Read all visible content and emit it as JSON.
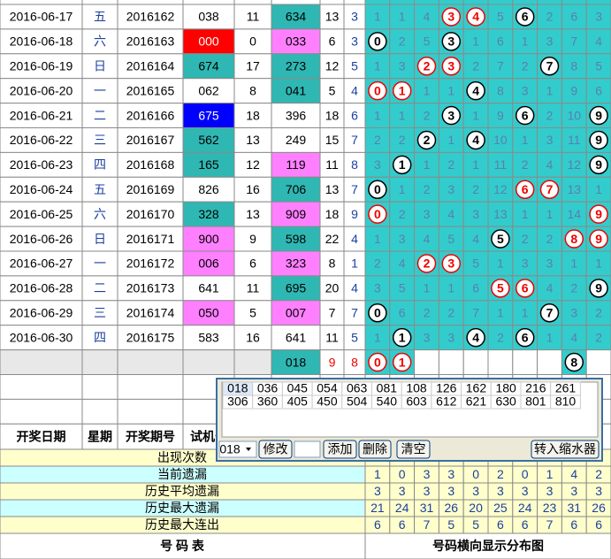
{
  "table": {
    "rows": [
      {
        "date": "2016-06-17",
        "weekday": "五",
        "issue": "2016162",
        "number": "038",
        "sum": 11,
        "number2": "634",
        "n2sum": 13,
        "span": 3,
        "dist": [
          1,
          1,
          4,
          3,
          4,
          5,
          6,
          2,
          6,
          3
        ],
        "hits": [
          3,
          4,
          6
        ],
        "red_hits": [
          3,
          4
        ],
        "number2_bg": "#2fb7b3"
      },
      {
        "date": "2016-06-18",
        "weekday": "六",
        "issue": "2016163",
        "number": "000",
        "sum": 0,
        "number2": "033",
        "n2sum": 6,
        "span": 3,
        "dist": [
          0,
          2,
          5,
          3,
          1,
          6,
          1,
          3,
          7,
          4
        ],
        "hits": [
          0,
          3
        ],
        "red_hits": [],
        "number_bg": "#ff0000",
        "number_fg": "#ffffff",
        "number2_bg": "#ff80ff"
      },
      {
        "date": "2016-06-19",
        "weekday": "日",
        "issue": "2016164",
        "number": "674",
        "sum": 17,
        "number2": "273",
        "n2sum": 12,
        "span": 5,
        "dist": [
          1,
          3,
          2,
          3,
          2,
          7,
          2,
          7,
          8,
          5
        ],
        "hits": [
          2,
          3,
          7
        ],
        "red_hits": [
          2,
          3
        ],
        "number_bg": "#2fb7b3",
        "number2_bg": "#2fb7b3"
      },
      {
        "date": "2016-06-20",
        "weekday": "一",
        "issue": "2016165",
        "number": "062",
        "sum": 8,
        "number2": "041",
        "n2sum": 5,
        "span": 4,
        "dist": [
          0,
          1,
          1,
          1,
          4,
          8,
          3,
          1,
          9,
          6
        ],
        "hits": [
          0,
          1,
          4
        ],
        "red_hits": [
          0,
          1
        ],
        "number2_bg": "#2fb7b3"
      },
      {
        "date": "2016-06-21",
        "weekday": "二",
        "issue": "2016166",
        "number": "675",
        "sum": 18,
        "number2": "396",
        "n2sum": 18,
        "span": 6,
        "dist": [
          1,
          1,
          2,
          3,
          1,
          9,
          6,
          2,
          10,
          9
        ],
        "hits": [
          3,
          6,
          9
        ],
        "red_hits": [],
        "number_bg": "#0000ff",
        "number_fg": "#ffffff"
      },
      {
        "date": "2016-06-22",
        "weekday": "三",
        "issue": "2016167",
        "number": "562",
        "sum": 13,
        "number2": "249",
        "n2sum": 15,
        "span": 7,
        "dist": [
          2,
          2,
          2,
          1,
          4,
          10,
          1,
          3,
          11,
          9
        ],
        "hits": [
          2,
          4,
          9
        ],
        "red_hits": [],
        "number_bg": "#2fb7b3"
      },
      {
        "date": "2016-06-23",
        "weekday": "四",
        "issue": "2016168",
        "number": "165",
        "sum": 12,
        "number2": "119",
        "n2sum": 11,
        "span": 8,
        "dist": [
          3,
          1,
          1,
          2,
          1,
          11,
          2,
          4,
          12,
          9
        ],
        "hits": [
          1,
          9
        ],
        "red_hits": [],
        "number_bg": "#2fb7b3",
        "number2_bg": "#ff80ff"
      },
      {
        "date": "2016-06-24",
        "weekday": "五",
        "issue": "2016169",
        "number": "826",
        "sum": 16,
        "number2": "706",
        "n2sum": 13,
        "span": 7,
        "dist": [
          0,
          1,
          2,
          3,
          2,
          12,
          6,
          7,
          13,
          1
        ],
        "hits": [
          0,
          6,
          7
        ],
        "red_hits": [
          6,
          7
        ],
        "number2_bg": "#2fb7b3"
      },
      {
        "date": "2016-06-25",
        "weekday": "六",
        "issue": "2016170",
        "number": "328",
        "sum": 13,
        "number2": "909",
        "n2sum": 18,
        "span": 9,
        "dist": [
          0,
          2,
          3,
          4,
          3,
          13,
          1,
          1,
          14,
          9
        ],
        "hits": [
          0,
          9
        ],
        "red_hits": [
          0,
          9
        ],
        "number_bg": "#2fb7b3",
        "number2_bg": "#ff80ff"
      },
      {
        "date": "2016-06-26",
        "weekday": "日",
        "issue": "2016171",
        "number": "900",
        "sum": 9,
        "number2": "598",
        "n2sum": 22,
        "span": 4,
        "dist": [
          1,
          3,
          4,
          5,
          4,
          5,
          2,
          2,
          8,
          9
        ],
        "hits": [
          5,
          8,
          9
        ],
        "red_hits": [
          8,
          9
        ],
        "number_bg": "#ff80ff",
        "number2_bg": "#2fb7b3"
      },
      {
        "date": "2016-06-27",
        "weekday": "一",
        "issue": "2016172",
        "number": "006",
        "sum": 6,
        "number2": "323",
        "n2sum": 8,
        "span": 1,
        "dist": [
          2,
          4,
          2,
          3,
          5,
          1,
          3,
          3,
          1,
          1
        ],
        "hits": [
          2,
          3
        ],
        "red_hits": [
          2,
          3
        ],
        "number_bg": "#ff80ff",
        "number2_bg": "#ff80ff"
      },
      {
        "date": "2016-06-28",
        "weekday": "二",
        "issue": "2016173",
        "number": "641",
        "sum": 11,
        "number2": "695",
        "n2sum": 20,
        "span": 4,
        "dist": [
          3,
          5,
          1,
          1,
          6,
          5,
          6,
          4,
          2,
          9
        ],
        "hits": [
          5,
          6,
          9
        ],
        "red_hits": [
          5,
          6
        ],
        "number2_bg": "#2fb7b3"
      },
      {
        "date": "2016-06-29",
        "weekday": "三",
        "issue": "2016174",
        "number": "050",
        "sum": 5,
        "number2": "007",
        "n2sum": 7,
        "span": 7,
        "dist": [
          0,
          6,
          2,
          2,
          7,
          1,
          1,
          7,
          3,
          2
        ],
        "hits": [
          0,
          7
        ],
        "red_hits": [],
        "number_bg": "#ff80ff",
        "number2_bg": "#ff80ff"
      },
      {
        "date": "2016-06-30",
        "weekday": "四",
        "issue": "2016175",
        "number": "583",
        "sum": 16,
        "number2": "641",
        "n2sum": 11,
        "span": 5,
        "dist": [
          1,
          1,
          3,
          3,
          4,
          2,
          6,
          1,
          4,
          2
        ],
        "hits": [
          1,
          4,
          6
        ],
        "red_hits": []
      }
    ],
    "summary": {
      "number2": "018",
      "n2sum": 9,
      "span": 8,
      "dist": [
        0,
        1,
        null,
        null,
        null,
        null,
        null,
        null,
        8,
        null
      ],
      "hits": [
        0,
        1,
        8
      ],
      "red_hits": [
        0,
        1
      ]
    },
    "header": [
      "开奖日期",
      "星期",
      "开奖期号",
      "试机号"
    ],
    "stats": [
      {
        "label": "出现次数",
        "values": []
      },
      {
        "label": "当前遗漏",
        "values": [
          1,
          0,
          3,
          3,
          0,
          2,
          0,
          1,
          4,
          2
        ]
      },
      {
        "label": "历史平均遗漏",
        "values": [
          3,
          3,
          3,
          3,
          3,
          3,
          3,
          3,
          3,
          3
        ]
      },
      {
        "label": "历史最大遗漏",
        "values": [
          21,
          24,
          31,
          26,
          20,
          25,
          24,
          23,
          31,
          26
        ]
      },
      {
        "label": "历史最大连出",
        "values": [
          6,
          6,
          7,
          5,
          5,
          6,
          6,
          7,
          6,
          6
        ]
      }
    ],
    "footer": [
      "号  码  表",
      "号码横向显示分布图"
    ]
  },
  "popup": {
    "numbers": [
      "018",
      "036",
      "045",
      "054",
      "063",
      "081",
      "108",
      "126",
      "162",
      "180",
      "216",
      "261",
      "306",
      "360",
      "405",
      "450",
      "504",
      "540",
      "603",
      "612",
      "621",
      "630",
      "801",
      "810"
    ],
    "select": "018",
    "buttons": [
      "修改",
      "添加",
      "删除",
      "清空",
      "转入缩水器"
    ]
  }
}
